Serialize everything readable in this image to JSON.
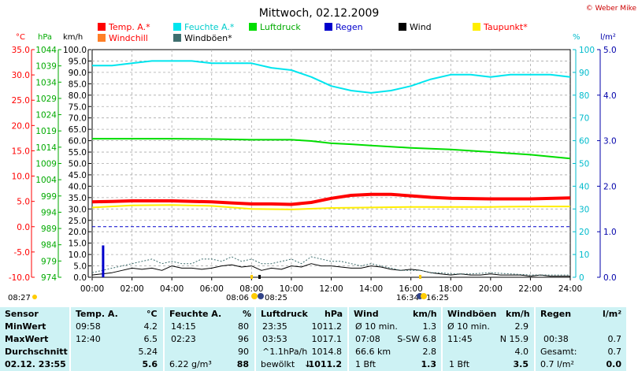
{
  "header": {
    "title": "Mittwoch, 02.12.2009",
    "copyright": "© Weber Mike"
  },
  "legend": [
    {
      "label": "Temp. A.*",
      "color": "#ff0000"
    },
    {
      "label": "Feuchte A.*",
      "color": "#00e5ee"
    },
    {
      "label": "Luftdruck",
      "color": "#00dd00"
    },
    {
      "label": "Regen",
      "color": "#0000cc"
    },
    {
      "label": "Wind",
      "color": "#000000"
    },
    {
      "label": "Taupunkt*",
      "color": "#ffee00"
    },
    {
      "label": "Windchill",
      "color": "#ff7f27"
    },
    {
      "label": "Windböen*",
      "color": "#3f6f6f"
    }
  ],
  "axis_units": {
    "temp": "°C",
    "pressure": "hPa",
    "wind": "km/h",
    "humidity": "%",
    "rain": "l/m²"
  },
  "markers": {
    "sunrise": "08:06",
    "sunset": "16:34",
    "moon_a": "08:25",
    "moon_b": "16:25",
    "left_time": "08:27"
  },
  "chart_data": {
    "type": "line",
    "title": "Mittwoch, 02.12.2009",
    "x_ticks": [
      "00:00",
      "02:00",
      "04:00",
      "06:00",
      "08:00",
      "10:00",
      "12:00",
      "14:00",
      "16:00",
      "18:00",
      "20:00",
      "22:00",
      "24:00"
    ],
    "x_range": [
      0,
      24
    ],
    "axes": {
      "temp": {
        "unit": "°C",
        "range": [
          -10,
          35
        ],
        "ticks": [
          "-10.0",
          "-5.0",
          "0.0",
          "5.0",
          "10.0",
          "15.0",
          "20.0",
          "25.0",
          "30.0",
          "35.0"
        ]
      },
      "pressure": {
        "unit": "hPa",
        "range": [
          974,
          1044
        ],
        "ticks": [
          "974",
          "979",
          "984",
          "989",
          "994",
          "999",
          "1004",
          "1009",
          "1014",
          "1019",
          "1024",
          "1029",
          "1034",
          "1039",
          "1044"
        ]
      },
      "wind": {
        "unit": "km/h",
        "range": [
          0,
          100
        ],
        "ticks": [
          "0.0",
          "5.0",
          "10.0",
          "15.0",
          "20.0",
          "25.0",
          "30.0",
          "35.0",
          "40.0",
          "45.0",
          "50.0",
          "55.0",
          "60.0",
          "65.0",
          "70.0",
          "75.0",
          "80.0",
          "85.0",
          "90.0",
          "95.0",
          "100.0"
        ]
      },
      "humidity": {
        "unit": "%",
        "range": [
          0,
          100
        ],
        "ticks": [
          "0",
          "10",
          "20",
          "30",
          "40",
          "50",
          "60",
          "70",
          "80",
          "90",
          "100"
        ]
      },
      "rain": {
        "unit": "l/m²",
        "range": [
          0,
          5
        ],
        "ticks": [
          "0.0",
          "1.0",
          "2.0",
          "3.0",
          "4.0",
          "5.0"
        ]
      }
    },
    "series": [
      {
        "name": "Temp. A.*",
        "axis": "temp",
        "color": "#ff0000",
        "width": 4,
        "x": [
          0,
          1,
          2,
          4,
          6,
          7,
          8,
          9,
          10,
          11,
          12,
          13,
          14,
          15,
          16,
          17,
          18,
          20,
          22,
          24
        ],
        "y": [
          4.9,
          5.0,
          5.1,
          5.1,
          4.9,
          4.7,
          4.5,
          4.5,
          4.4,
          4.8,
          5.6,
          6.2,
          6.4,
          6.4,
          6.1,
          5.8,
          5.6,
          5.5,
          5.5,
          5.7
        ]
      },
      {
        "name": "Feuchte A.*",
        "axis": "humidity",
        "color": "#00e5ee",
        "width": 2,
        "x": [
          0,
          1,
          2,
          3,
          4,
          5,
          6,
          8,
          9,
          10,
          11,
          12,
          13,
          14,
          15,
          16,
          17,
          18,
          19,
          20,
          21,
          22,
          23,
          24
        ],
        "y": [
          93,
          93,
          94,
          95,
          95,
          95,
          94,
          94,
          92,
          91,
          88,
          84,
          82,
          81,
          82,
          84,
          87,
          89,
          89,
          88,
          89,
          89,
          89,
          88
        ]
      },
      {
        "name": "Luftdruck",
        "axis": "pressure",
        "color": "#00dd00",
        "width": 2,
        "x": [
          0,
          2,
          4,
          6,
          8,
          10,
          11,
          12,
          13,
          14,
          16,
          18,
          20,
          22,
          24
        ],
        "y": [
          1016.6,
          1016.6,
          1016.6,
          1016.5,
          1016.3,
          1016.3,
          1015.9,
          1015.2,
          1014.9,
          1014.5,
          1013.8,
          1013.3,
          1012.5,
          1011.7,
          1010.5
        ]
      },
      {
        "name": "Taupunkt*",
        "axis": "temp",
        "color": "#ffee00",
        "width": 2,
        "x": [
          0,
          2,
          4,
          6,
          8,
          10,
          12,
          14,
          16,
          18,
          20,
          22,
          24
        ],
        "y": [
          3.8,
          4.2,
          4.3,
          4.1,
          3.5,
          3.4,
          3.7,
          3.8,
          3.9,
          3.9,
          3.9,
          4.0,
          4.0
        ]
      },
      {
        "name": "Wind",
        "axis": "wind",
        "color": "#000000",
        "width": 1,
        "x": [
          0,
          0.5,
          1,
          1.5,
          2,
          2.5,
          3,
          3.5,
          4,
          4.5,
          5,
          5.5,
          6,
          6.5,
          7,
          7.5,
          8,
          8.5,
          9,
          9.5,
          10,
          10.5,
          11,
          11.5,
          12,
          12.5,
          13,
          13.5,
          14,
          14.5,
          15,
          15.5,
          16,
          16.5,
          17,
          17.5,
          18,
          18.5,
          19,
          19.5,
          20,
          20.5,
          21,
          21.5,
          22,
          22.5,
          23,
          23.5,
          24
        ],
        "y": [
          1,
          1.5,
          2,
          3,
          4,
          3.5,
          4,
          3,
          5,
          4,
          4,
          3.5,
          4,
          5,
          5.5,
          4.5,
          5,
          3,
          4,
          3.5,
          5,
          4.5,
          6,
          5,
          5,
          4.5,
          4,
          4,
          5,
          4.5,
          3.5,
          3,
          3.5,
          3,
          2,
          1.5,
          1,
          1.5,
          1,
          1,
          1.5,
          1,
          1,
          1,
          0.5,
          1,
          0.5,
          0.5,
          0.5
        ]
      },
      {
        "name": "Windböen*",
        "axis": "wind",
        "color": "#3f6f6f",
        "width": 1,
        "dashed": true,
        "x": [
          0,
          0.5,
          1,
          1.5,
          2,
          2.5,
          3,
          3.5,
          4,
          4.5,
          5,
          5.5,
          6,
          6.5,
          7,
          7.5,
          8,
          8.5,
          9,
          9.5,
          10,
          10.5,
          11,
          11.5,
          12,
          12.5,
          13,
          13.5,
          14,
          14.5,
          15,
          15.5,
          16,
          16.5,
          17,
          17.5,
          18,
          19,
          20,
          21,
          22,
          23,
          24
        ],
        "y": [
          2,
          3,
          4,
          5,
          6,
          7,
          8,
          6,
          7,
          6,
          6,
          8,
          8,
          7,
          9,
          7,
          8,
          6,
          6,
          7,
          8,
          6,
          9,
          8,
          7,
          7,
          6,
          5,
          6,
          5,
          4,
          3,
          3,
          3,
          2,
          2,
          1.5,
          1.5,
          2,
          1.5,
          1,
          1,
          1
        ]
      },
      {
        "name": "Regen",
        "axis": "rain",
        "color": "#0000cc",
        "type": "bar",
        "x": [
          0.55
        ],
        "y": [
          0.7
        ]
      }
    ],
    "reference_line": {
      "axis": "temp",
      "value": 0.0,
      "color": "#0000cc",
      "dashed": true
    },
    "grid": true
  },
  "table": {
    "headers": {
      "sensor": "Sensor",
      "temp": "Temp. A.",
      "temp_unit": "°C",
      "hum": "Feuchte A.",
      "hum_unit": "%",
      "press": "Luftdruck",
      "press_unit": "hPa",
      "wind": "Wind",
      "wind_unit": "km/h",
      "gust": "Windböen",
      "gust_unit": "km/h",
      "rain": "Regen",
      "rain_unit": "l/m²"
    },
    "rows": [
      {
        "label": "MinWert",
        "temp_time": "09:58",
        "temp_val": "4.2",
        "hum_time": "14:15",
        "hum_val": "80",
        "press_time": "23:35",
        "press_val": "1011.2",
        "wind_a": "Ø 10 min.",
        "wind_val": "1.3",
        "gust_a": "Ø 10 min.",
        "gust_val": "2.9",
        "rain_a": "",
        "rain_val": ""
      },
      {
        "label": "MaxWert",
        "temp_time": "12:40",
        "temp_val": "6.5",
        "hum_time": "02:23",
        "hum_val": "96",
        "press_time": "03:53",
        "press_val": "1017.1",
        "wind_a": "07:08",
        "wind_b": "S-SW 6.8",
        "wind_val": "",
        "gust_a": "11:45",
        "gust_b": "N 15.9",
        "gust_val": "",
        "rain_a": "00:38",
        "rain_val": "0.7"
      },
      {
        "label": "Durchschnitt",
        "temp_time": "",
        "temp_val": "5.24",
        "hum_time": "",
        "hum_val": "90",
        "press_time": "^1.1hPa/h",
        "press_val": "1014.8",
        "wind_a": "66.6 km",
        "wind_val": "2.8",
        "gust_a": "",
        "gust_val": "4.0",
        "rain_a": "Gesamt:",
        "rain_val": "0.7"
      },
      {
        "label": "02.12. 23:55",
        "temp_time": "",
        "temp_val": "5.6",
        "hum_time": "6.22 g/m³",
        "hum_val": "88",
        "press_time": "bewölkt",
        "press_arrow": "↓",
        "press_val": "1011.2",
        "wind_a": "1 Bft",
        "wind_val": "1.3",
        "gust_a": "1 Bft",
        "gust_val": "3.5",
        "rain_a": "0.7 l/m²",
        "rain_val": "0.0"
      }
    ]
  }
}
